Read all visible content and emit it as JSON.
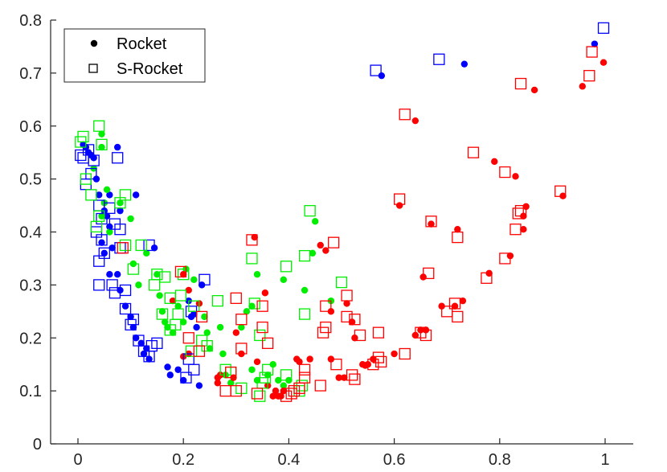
{
  "chart_data": {
    "type": "scatter",
    "xlim": [
      0,
      1
    ],
    "ylim": [
      0,
      0.8
    ],
    "x_ticks": [
      "0",
      "0.2",
      "0.4",
      "0.6",
      "0.8",
      "1"
    ],
    "y_ticks": [
      "0",
      "0.1",
      "0.2",
      "0.3",
      "0.4",
      "0.5",
      "0.6",
      "0.7",
      "0.8"
    ],
    "grid": false,
    "legend": {
      "placement": "top-left",
      "entries": [
        {
          "label": "Rocket",
          "marker": "filled-circle"
        },
        {
          "label": "S-Rocket",
          "marker": "open-square"
        }
      ]
    },
    "colors": {
      "blue": "#0000ff",
      "green": "#00ee00",
      "red": "#ff0000",
      "axis": "#262626"
    },
    "series": [
      {
        "marker": "filled-circle",
        "color": "blue",
        "points": [
          [
            0.98,
            0.755
          ],
          [
            0.733,
            0.717
          ],
          [
            0.576,
            0.695
          ],
          [
            0.01,
            0.565
          ],
          [
            0.015,
            0.56
          ],
          [
            0.02,
            0.55
          ],
          [
            0.025,
            0.545
          ],
          [
            0.03,
            0.54
          ],
          [
            0.075,
            0.56
          ],
          [
            0.035,
            0.5
          ],
          [
            0.04,
            0.47
          ],
          [
            0.05,
            0.44
          ],
          [
            0.055,
            0.43
          ],
          [
            0.06,
            0.41
          ],
          [
            0.06,
            0.47
          ],
          [
            0.08,
            0.44
          ],
          [
            0.045,
            0.38
          ],
          [
            0.05,
            0.36
          ],
          [
            0.065,
            0.37
          ],
          [
            0.075,
            0.32
          ],
          [
            0.08,
            0.29
          ],
          [
            0.09,
            0.26
          ],
          [
            0.1,
            0.24
          ],
          [
            0.105,
            0.22
          ],
          [
            0.11,
            0.2
          ],
          [
            0.12,
            0.19
          ],
          [
            0.125,
            0.17
          ],
          [
            0.13,
            0.18
          ],
          [
            0.135,
            0.16
          ],
          [
            0.145,
            0.37
          ],
          [
            0.11,
            0.47
          ],
          [
            0.17,
            0.145
          ],
          [
            0.175,
            0.13
          ],
          [
            0.19,
            0.14
          ],
          [
            0.2,
            0.12
          ],
          [
            0.21,
            0.27
          ],
          [
            0.215,
            0.24
          ],
          [
            0.225,
            0.22
          ],
          [
            0.23,
            0.11
          ],
          [
            0.235,
            0.3
          ],
          [
            0.22,
            0.245
          ],
          [
            0.06,
            0.32
          ]
        ]
      },
      {
        "marker": "filled-circle",
        "color": "green",
        "points": [
          [
            0.045,
            0.585
          ],
          [
            0.045,
            0.56
          ],
          [
            0.03,
            0.52
          ],
          [
            0.055,
            0.48
          ],
          [
            0.05,
            0.455
          ],
          [
            0.08,
            0.455
          ],
          [
            0.1,
            0.425
          ],
          [
            0.06,
            0.4
          ],
          [
            0.045,
            0.43
          ],
          [
            0.105,
            0.34
          ],
          [
            0.115,
            0.3
          ],
          [
            0.13,
            0.36
          ],
          [
            0.15,
            0.32
          ],
          [
            0.155,
            0.28
          ],
          [
            0.16,
            0.25
          ],
          [
            0.165,
            0.23
          ],
          [
            0.17,
            0.22
          ],
          [
            0.18,
            0.21
          ],
          [
            0.19,
            0.26
          ],
          [
            0.2,
            0.23
          ],
          [
            0.205,
            0.33
          ],
          [
            0.22,
            0.31
          ],
          [
            0.24,
            0.24
          ],
          [
            0.245,
            0.21
          ],
          [
            0.25,
            0.18
          ],
          [
            0.27,
            0.22
          ],
          [
            0.275,
            0.17
          ],
          [
            0.28,
            0.13
          ],
          [
            0.29,
            0.115
          ],
          [
            0.31,
            0.22
          ],
          [
            0.32,
            0.25
          ],
          [
            0.33,
            0.26
          ],
          [
            0.34,
            0.32
          ],
          [
            0.36,
            0.13
          ],
          [
            0.37,
            0.15
          ],
          [
            0.38,
            0.12
          ],
          [
            0.39,
            0.11
          ],
          [
            0.4,
            0.12
          ],
          [
            0.39,
            0.31
          ],
          [
            0.43,
            0.29
          ],
          [
            0.445,
            0.36
          ],
          [
            0.45,
            0.42
          ],
          [
            0.48,
            0.27
          ],
          [
            0.34,
            0.12
          ],
          [
            0.33,
            0.14
          ]
        ]
      },
      {
        "marker": "filled-circle",
        "color": "red",
        "points": [
          [
            0.997,
            0.72
          ],
          [
            0.866,
            0.668
          ],
          [
            0.957,
            0.675
          ],
          [
            0.64,
            0.61
          ],
          [
            0.79,
            0.533
          ],
          [
            0.83,
            0.505
          ],
          [
            0.61,
            0.45
          ],
          [
            0.67,
            0.415
          ],
          [
            0.72,
            0.405
          ],
          [
            0.85,
            0.448
          ],
          [
            0.845,
            0.43
          ],
          [
            0.845,
            0.405
          ],
          [
            0.92,
            0.468
          ],
          [
            0.82,
            0.355
          ],
          [
            0.78,
            0.322
          ],
          [
            0.655,
            0.315
          ],
          [
            0.73,
            0.27
          ],
          [
            0.715,
            0.26
          ],
          [
            0.69,
            0.26
          ],
          [
            0.66,
            0.215
          ],
          [
            0.65,
            0.215
          ],
          [
            0.64,
            0.205
          ],
          [
            0.6,
            0.17
          ],
          [
            0.56,
            0.16
          ],
          [
            0.55,
            0.15
          ],
          [
            0.545,
            0.148
          ],
          [
            0.54,
            0.15
          ],
          [
            0.525,
            0.2
          ],
          [
            0.52,
            0.23
          ],
          [
            0.51,
            0.265
          ],
          [
            0.48,
            0.25
          ],
          [
            0.47,
            0.365
          ],
          [
            0.46,
            0.375
          ],
          [
            0.48,
            0.16
          ],
          [
            0.495,
            0.125
          ],
          [
            0.505,
            0.125
          ],
          [
            0.44,
            0.16
          ],
          [
            0.415,
            0.16
          ],
          [
            0.39,
            0.1
          ],
          [
            0.385,
            0.09
          ],
          [
            0.375,
            0.1
          ],
          [
            0.37,
            0.09
          ],
          [
            0.36,
            0.11
          ],
          [
            0.34,
            0.155
          ],
          [
            0.335,
            0.39
          ],
          [
            0.355,
            0.285
          ],
          [
            0.31,
            0.17
          ],
          [
            0.3,
            0.21
          ],
          [
            0.295,
            0.125
          ],
          [
            0.27,
            0.13
          ],
          [
            0.265,
            0.115
          ],
          [
            0.265,
            0.125
          ],
          [
            0.2,
            0.165
          ],
          [
            0.21,
            0.29
          ],
          [
            0.2,
            0.32
          ],
          [
            0.18,
            0.27
          ],
          [
            0.21,
            0.17
          ],
          [
            0.23,
            0.265
          ],
          [
            0.42,
            0.155
          ],
          [
            0.38,
            0.09
          ]
        ]
      },
      {
        "marker": "open-square",
        "color": "blue",
        "points": [
          [
            0.997,
            0.785
          ],
          [
            0.685,
            0.726
          ],
          [
            0.565,
            0.705
          ],
          [
            0.005,
            0.545
          ],
          [
            0.01,
            0.54
          ],
          [
            0.02,
            0.555
          ],
          [
            0.03,
            0.535
          ],
          [
            0.075,
            0.54
          ],
          [
            0.015,
            0.49
          ],
          [
            0.025,
            0.51
          ],
          [
            0.04,
            0.45
          ],
          [
            0.045,
            0.425
          ],
          [
            0.06,
            0.445
          ],
          [
            0.035,
            0.4
          ],
          [
            0.07,
            0.415
          ],
          [
            0.08,
            0.405
          ],
          [
            0.045,
            0.385
          ],
          [
            0.04,
            0.345
          ],
          [
            0.05,
            0.36
          ],
          [
            0.04,
            0.3
          ],
          [
            0.065,
            0.3
          ],
          [
            0.07,
            0.285
          ],
          [
            0.09,
            0.29
          ],
          [
            0.09,
            0.255
          ],
          [
            0.105,
            0.235
          ],
          [
            0.1,
            0.225
          ],
          [
            0.115,
            0.195
          ],
          [
            0.125,
            0.175
          ],
          [
            0.135,
            0.165
          ],
          [
            0.14,
            0.185
          ],
          [
            0.135,
            0.375
          ],
          [
            0.15,
            0.19
          ],
          [
            0.205,
            0.125
          ],
          [
            0.215,
            0.25
          ],
          [
            0.24,
            0.31
          ],
          [
            0.21,
            0.16
          ],
          [
            0.22,
            0.14
          ],
          [
            0.08,
            0.37
          ]
        ]
      },
      {
        "marker": "open-square",
        "color": "green",
        "points": [
          [
            0.04,
            0.6
          ],
          [
            0.01,
            0.58
          ],
          [
            0.005,
            0.57
          ],
          [
            0.045,
            0.565
          ],
          [
            0.015,
            0.5
          ],
          [
            0.025,
            0.47
          ],
          [
            0.04,
            0.43
          ],
          [
            0.09,
            0.47
          ],
          [
            0.08,
            0.455
          ],
          [
            0.035,
            0.41
          ],
          [
            0.09,
            0.375
          ],
          [
            0.12,
            0.375
          ],
          [
            0.105,
            0.33
          ],
          [
            0.15,
            0.32
          ],
          [
            0.165,
            0.315
          ],
          [
            0.175,
            0.275
          ],
          [
            0.145,
            0.3
          ],
          [
            0.16,
            0.245
          ],
          [
            0.19,
            0.245
          ],
          [
            0.175,
            0.215
          ],
          [
            0.185,
            0.225
          ],
          [
            0.195,
            0.28
          ],
          [
            0.2,
            0.32
          ],
          [
            0.22,
            0.26
          ],
          [
            0.215,
            0.175
          ],
          [
            0.235,
            0.195
          ],
          [
            0.245,
            0.185
          ],
          [
            0.265,
            0.27
          ],
          [
            0.28,
            0.14
          ],
          [
            0.29,
            0.135
          ],
          [
            0.31,
            0.105
          ],
          [
            0.33,
            0.35
          ],
          [
            0.335,
            0.265
          ],
          [
            0.345,
            0.09
          ],
          [
            0.35,
            0.115
          ],
          [
            0.355,
            0.125
          ],
          [
            0.36,
            0.14
          ],
          [
            0.395,
            0.13
          ],
          [
            0.395,
            0.335
          ],
          [
            0.425,
            0.11
          ],
          [
            0.42,
            0.1
          ],
          [
            0.43,
            0.245
          ],
          [
            0.43,
            0.355
          ],
          [
            0.44,
            0.44
          ],
          [
            0.5,
            0.305
          ],
          [
            0.345,
            0.205
          ]
        ]
      },
      {
        "marker": "open-square",
        "color": "red",
        "points": [
          [
            0.975,
            0.74
          ],
          [
            0.97,
            0.695
          ],
          [
            0.84,
            0.68
          ],
          [
            0.62,
            0.622
          ],
          [
            0.75,
            0.55
          ],
          [
            0.81,
            0.513
          ],
          [
            0.61,
            0.462
          ],
          [
            0.67,
            0.42
          ],
          [
            0.72,
            0.39
          ],
          [
            0.84,
            0.44
          ],
          [
            0.835,
            0.435
          ],
          [
            0.83,
            0.405
          ],
          [
            0.915,
            0.477
          ],
          [
            0.81,
            0.35
          ],
          [
            0.775,
            0.313
          ],
          [
            0.665,
            0.322
          ],
          [
            0.715,
            0.265
          ],
          [
            0.7,
            0.25
          ],
          [
            0.72,
            0.24
          ],
          [
            0.66,
            0.205
          ],
          [
            0.65,
            0.21
          ],
          [
            0.62,
            0.17
          ],
          [
            0.57,
            0.21
          ],
          [
            0.575,
            0.155
          ],
          [
            0.57,
            0.163
          ],
          [
            0.56,
            0.15
          ],
          [
            0.535,
            0.205
          ],
          [
            0.525,
            0.235
          ],
          [
            0.51,
            0.24
          ],
          [
            0.51,
            0.28
          ],
          [
            0.47,
            0.26
          ],
          [
            0.485,
            0.38
          ],
          [
            0.49,
            0.15
          ],
          [
            0.52,
            0.13
          ],
          [
            0.525,
            0.122
          ],
          [
            0.47,
            0.22
          ],
          [
            0.465,
            0.21
          ],
          [
            0.46,
            0.11
          ],
          [
            0.43,
            0.125
          ],
          [
            0.43,
            0.14
          ],
          [
            0.42,
            0.105
          ],
          [
            0.41,
            0.1
          ],
          [
            0.405,
            0.095
          ],
          [
            0.395,
            0.09
          ],
          [
            0.36,
            0.19
          ],
          [
            0.35,
            0.22
          ],
          [
            0.35,
            0.26
          ],
          [
            0.33,
            0.385
          ],
          [
            0.31,
            0.235
          ],
          [
            0.31,
            0.18
          ],
          [
            0.3,
            0.1
          ],
          [
            0.29,
            0.135
          ],
          [
            0.195,
            0.325
          ],
          [
            0.21,
            0.2
          ],
          [
            0.235,
            0.24
          ],
          [
            0.23,
            0.175
          ],
          [
            0.085,
            0.37
          ],
          [
            0.3,
            0.275
          ],
          [
            0.34,
            0.095
          ],
          [
            0.28,
            0.1
          ]
        ]
      }
    ]
  }
}
